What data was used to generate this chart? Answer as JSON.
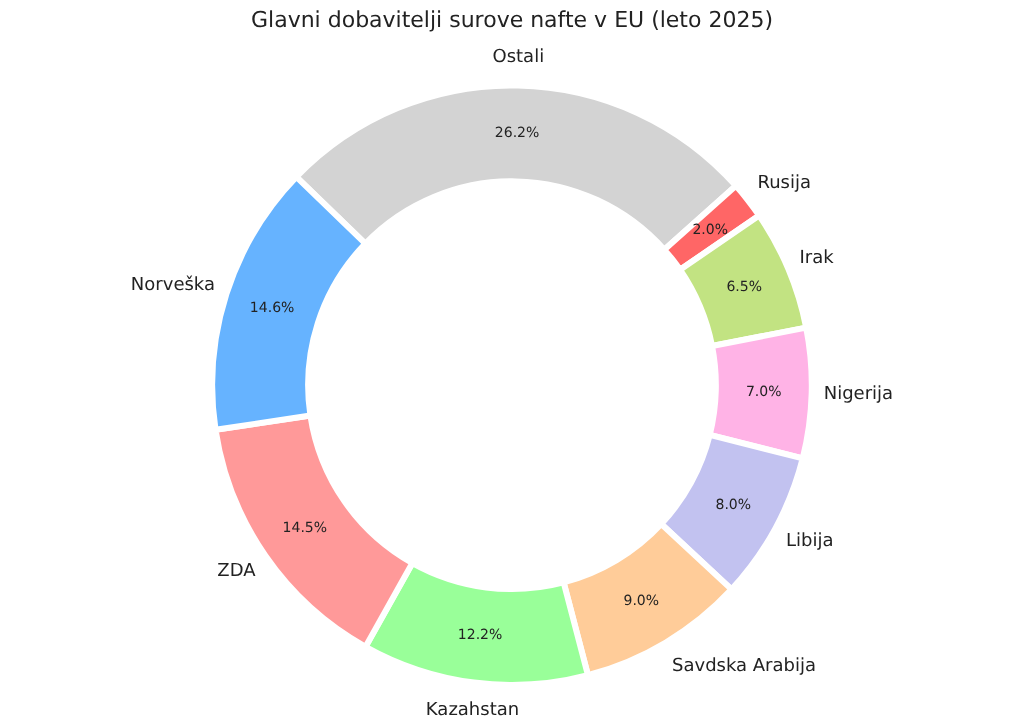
{
  "chart_data": {
    "type": "donut",
    "title": "Glavni dobavitelji surove nafte v EU (leto 2025)",
    "categories": [
      "Ostali",
      "Rusija",
      "Irak",
      "Nigerija",
      "Libija",
      "Savdska Arabija",
      "Kazahstan",
      "ZDA",
      "Norveška"
    ],
    "values": [
      26.2,
      2.0,
      6.5,
      7.0,
      8.0,
      9.0,
      12.2,
      14.5,
      14.6
    ],
    "value_labels": [
      "26.2%",
      "2.0%",
      "6.5%",
      "7.0%",
      "8.0%",
      "9.0%",
      "12.2%",
      "14.5%",
      "14.6%"
    ],
    "colors": [
      "#d3d3d3",
      "#ff6666",
      "#c2e382",
      "#ffb3e6",
      "#c2c2f0",
      "#ffcc99",
      "#99ff99",
      "#ff9999",
      "#66b3ff"
    ],
    "legend": false
  }
}
